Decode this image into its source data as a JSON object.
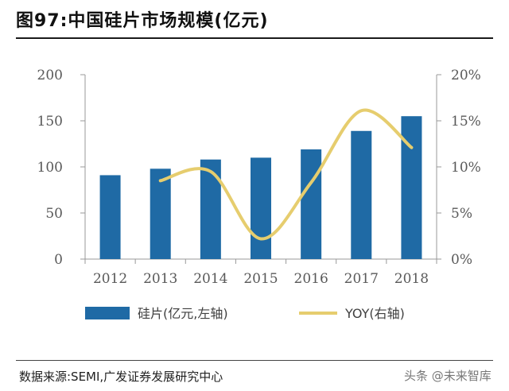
{
  "figure": {
    "title": "图97:中国硅片市场规模(亿元)",
    "source": "数据来源:SEMI,广发证券发展研究中心",
    "watermark": "头条 @未来智库"
  },
  "colors": {
    "bar": "#1f6aa5",
    "line": "#e6cd6e",
    "axis": "#999999",
    "tick_text": "#595959"
  },
  "chart_data": {
    "type": "bar",
    "title": "图97:中国硅片市场规模(亿元)",
    "categories": [
      "2012",
      "2013",
      "2014",
      "2015",
      "2016",
      "2017",
      "2018"
    ],
    "series": [
      {
        "name": "硅片(亿元,左轴)",
        "type": "bar",
        "axis": "left",
        "values": [
          91,
          98,
          108,
          110,
          119,
          139,
          155
        ]
      },
      {
        "name": "YOY(右轴)",
        "type": "line",
        "axis": "right",
        "smooth": true,
        "values": [
          null,
          8.5,
          9.5,
          2.2,
          8.3,
          16.1,
          12.1
        ]
      }
    ],
    "y_left": {
      "ylim": [
        0,
        200
      ],
      "ticks": [
        "0",
        "50",
        "100",
        "150",
        "200"
      ]
    },
    "y_right": {
      "ylim": [
        0,
        20
      ],
      "ticks": [
        "0%",
        "5%",
        "10%",
        "15%",
        "20%"
      ]
    },
    "xlabel": "",
    "ylabel": "",
    "grid": false,
    "legend": "bottom"
  }
}
